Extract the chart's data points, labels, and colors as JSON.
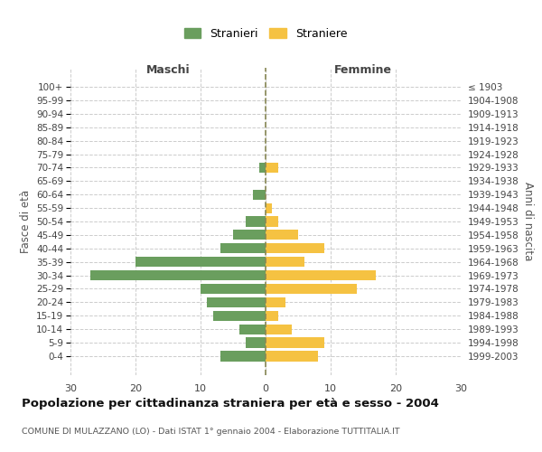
{
  "age_groups": [
    "100+",
    "95-99",
    "90-94",
    "85-89",
    "80-84",
    "75-79",
    "70-74",
    "65-69",
    "60-64",
    "55-59",
    "50-54",
    "45-49",
    "40-44",
    "35-39",
    "30-34",
    "25-29",
    "20-24",
    "15-19",
    "10-14",
    "5-9",
    "0-4"
  ],
  "birth_years": [
    "≤ 1903",
    "1904-1908",
    "1909-1913",
    "1914-1918",
    "1919-1923",
    "1924-1928",
    "1929-1933",
    "1934-1938",
    "1939-1943",
    "1944-1948",
    "1949-1953",
    "1954-1958",
    "1959-1963",
    "1964-1968",
    "1969-1973",
    "1974-1978",
    "1979-1983",
    "1984-1988",
    "1989-1993",
    "1994-1998",
    "1999-2003"
  ],
  "males": [
    0,
    0,
    0,
    0,
    0,
    0,
    1,
    0,
    2,
    0,
    3,
    5,
    7,
    20,
    27,
    10,
    9,
    8,
    4,
    3,
    7
  ],
  "females": [
    0,
    0,
    0,
    0,
    0,
    0,
    2,
    0,
    0,
    1,
    2,
    5,
    9,
    6,
    17,
    14,
    3,
    2,
    4,
    9,
    8
  ],
  "male_color": "#6a9e5e",
  "female_color": "#f5c242",
  "title": "Popolazione per cittadinanza straniera per età e sesso - 2004",
  "subtitle": "COMUNE DI MULAZZANO (LO) - Dati ISTAT 1° gennaio 2004 - Elaborazione TUTTITALIA.IT",
  "legend_male": "Stranieri",
  "legend_female": "Straniere",
  "left_header": "Maschi",
  "right_header": "Femmine",
  "left_ylabel": "Fasce di età",
  "right_ylabel": "Anni di nascita",
  "xlim": 30,
  "background_color": "#ffffff",
  "grid_color": "#cccccc",
  "dashed_line_color": "#888855"
}
